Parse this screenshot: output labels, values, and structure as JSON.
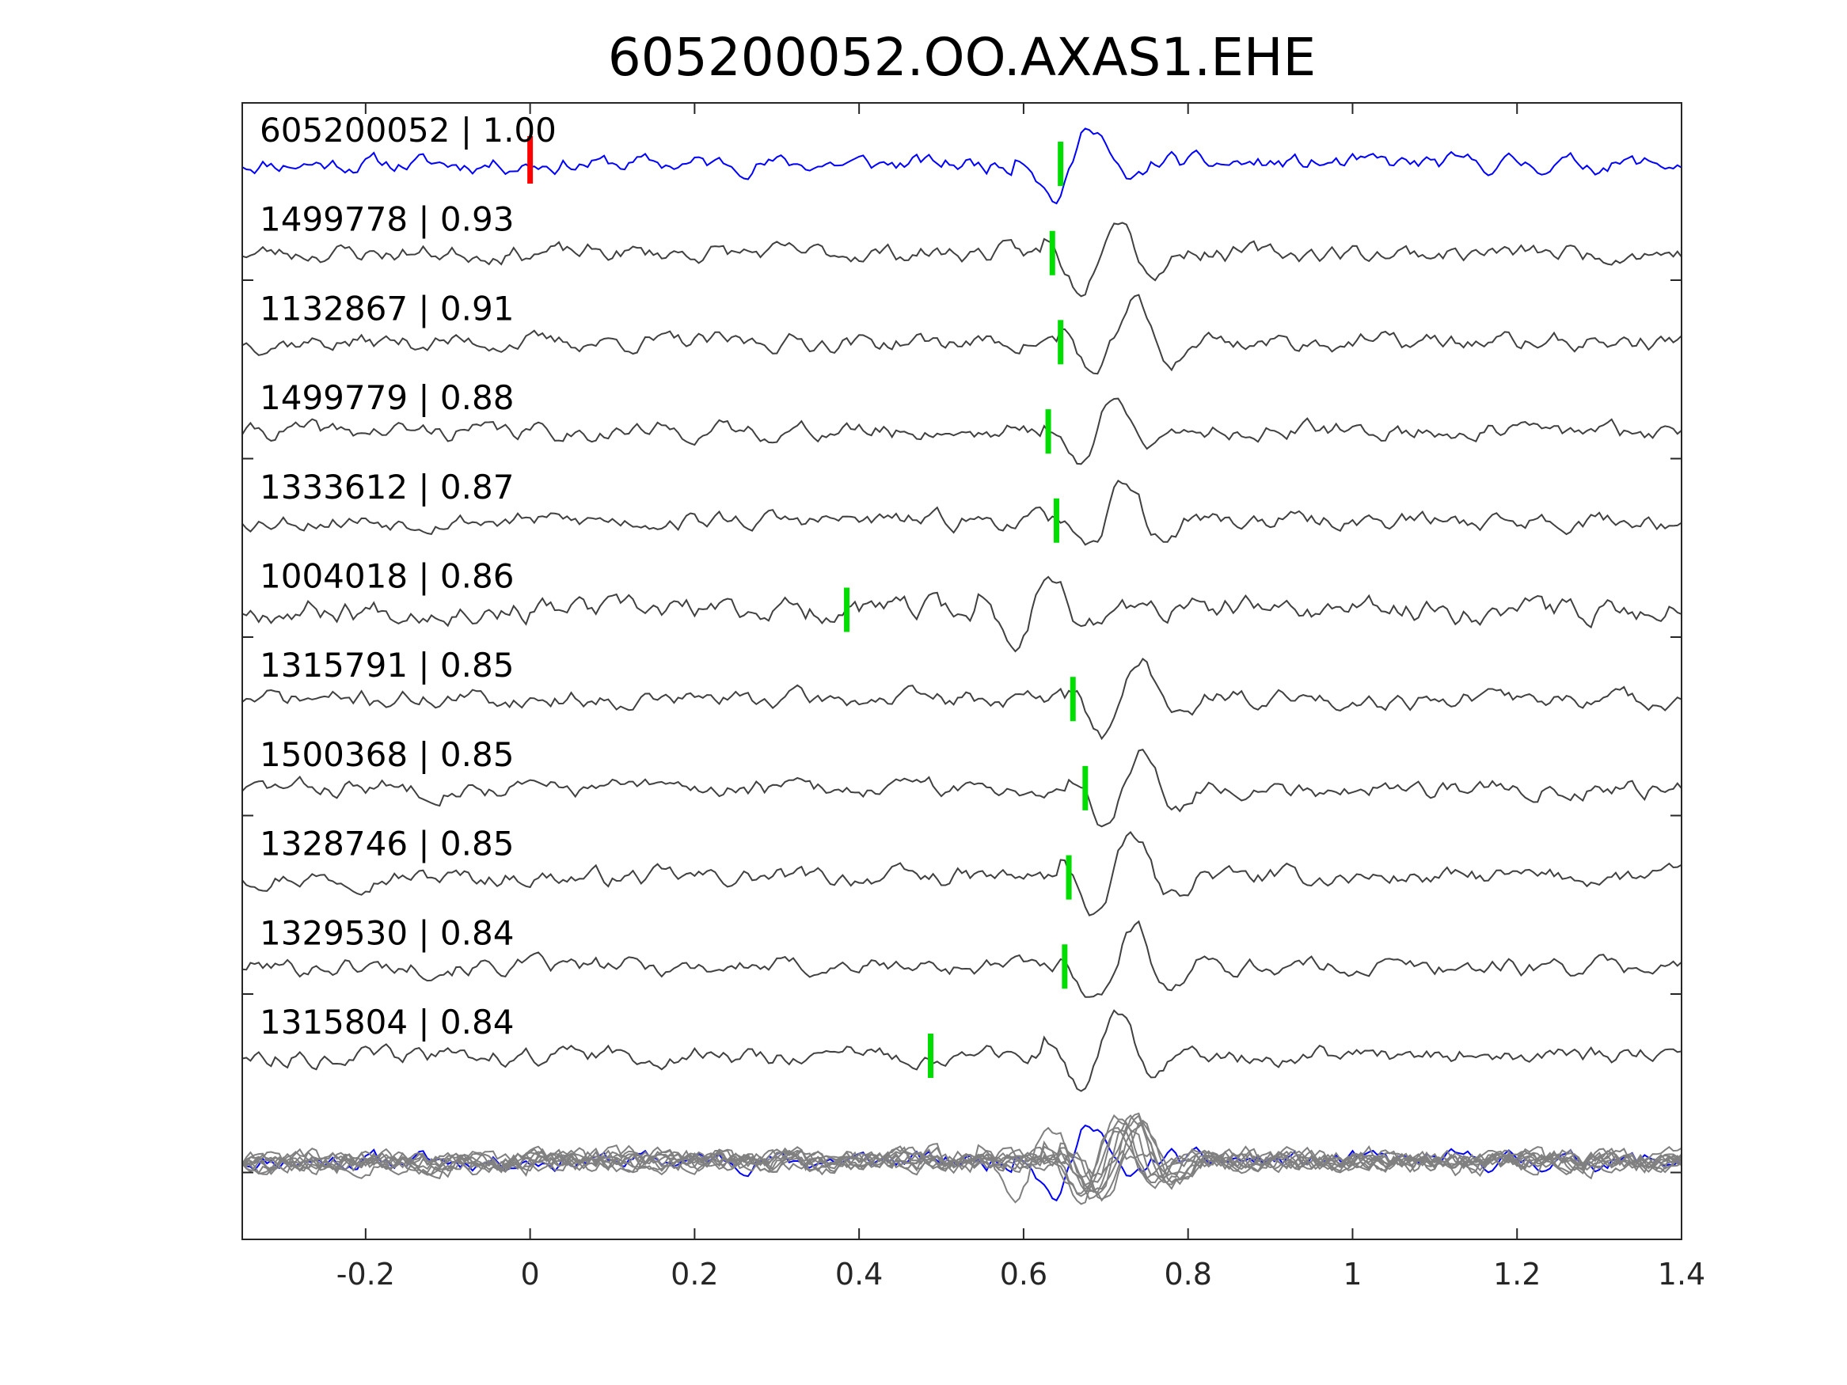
{
  "chart_data": {
    "type": "line",
    "title": "605200052.OO.AXAS1.EHE",
    "xlabel": "",
    "ylabel": "",
    "xlim": [
      -0.35,
      1.4
    ],
    "xticks": [
      -0.2,
      0,
      0.2,
      0.4,
      0.6,
      0.8,
      1,
      1.2,
      1.4
    ],
    "xtick_labels": [
      "-0.2",
      "0",
      "0.2",
      "0.4",
      "0.6",
      "0.8",
      "1",
      "1.2",
      "1.4"
    ],
    "grid": false,
    "master_pick_time": 0,
    "colors": {
      "master": "#0000ff",
      "template": "#404040",
      "overlay": "#808080",
      "master_pick": "#ff0000",
      "template_pick": "#00dd00"
    },
    "traces": [
      {
        "label": "605200052 | 1.00",
        "pick": 0.645,
        "event": 0.61,
        "amp": 0.42,
        "seed": 11,
        "master": true
      },
      {
        "label": "1499778 | 0.93",
        "pick": 0.635,
        "event": 0.64,
        "amp": 0.42,
        "seed": 23
      },
      {
        "label": "1132867 | 0.91",
        "pick": 0.645,
        "event": 0.66,
        "amp": 0.42,
        "seed": 37
      },
      {
        "label": "1499779 | 0.88",
        "pick": 0.63,
        "event": 0.64,
        "amp": 0.42,
        "seed": 41
      },
      {
        "label": "1333612 | 0.87",
        "pick": 0.64,
        "event": 0.65,
        "amp": 0.42,
        "seed": 53
      },
      {
        "label": "1004018 | 0.86",
        "pick": 0.385,
        "event": 0.56,
        "amp": 0.55,
        "seed": 67
      },
      {
        "label": "1315791 | 0.85",
        "pick": 0.66,
        "event": 0.67,
        "amp": 0.42,
        "seed": 71
      },
      {
        "label": "1500368 | 0.85",
        "pick": 0.675,
        "event": 0.67,
        "amp": 0.42,
        "seed": 83
      },
      {
        "label": "1328746 | 0.85",
        "pick": 0.655,
        "event": 0.66,
        "amp": 0.42,
        "seed": 97
      },
      {
        "label": "1329530 | 0.84",
        "pick": 0.65,
        "event": 0.66,
        "amp": 0.42,
        "seed": 101
      },
      {
        "label": "1315804 | 0.84",
        "pick": 0.487,
        "event": 0.64,
        "amp": 0.42,
        "seed": 113
      }
    ]
  }
}
